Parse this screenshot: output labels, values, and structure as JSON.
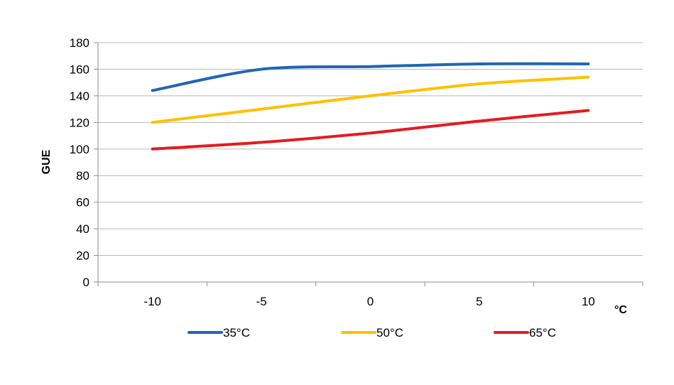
{
  "chart_data": {
    "type": "line",
    "title": "",
    "xlabel": "°C",
    "ylabel": "GUE",
    "x": [
      -10,
      -5,
      0,
      5,
      10
    ],
    "x_tick_labels": [
      "-10",
      "-5",
      "0",
      "5",
      "10"
    ],
    "xlim": [
      -12.5,
      12.5
    ],
    "ylim": [
      0,
      180
    ],
    "y_ticks": [
      0,
      20,
      40,
      60,
      80,
      100,
      120,
      140,
      160,
      180
    ],
    "grid": "horizontal",
    "legend_position": "bottom",
    "series": [
      {
        "name": "35°C",
        "color": "#1f66b5",
        "values": [
          144,
          160,
          162,
          164,
          164
        ]
      },
      {
        "name": "50°C",
        "color": "#ffc000",
        "values": [
          120,
          130,
          140,
          149,
          154
        ]
      },
      {
        "name": "65°C",
        "color": "#e31b23",
        "values": [
          100,
          105,
          112,
          121,
          129
        ]
      }
    ]
  }
}
